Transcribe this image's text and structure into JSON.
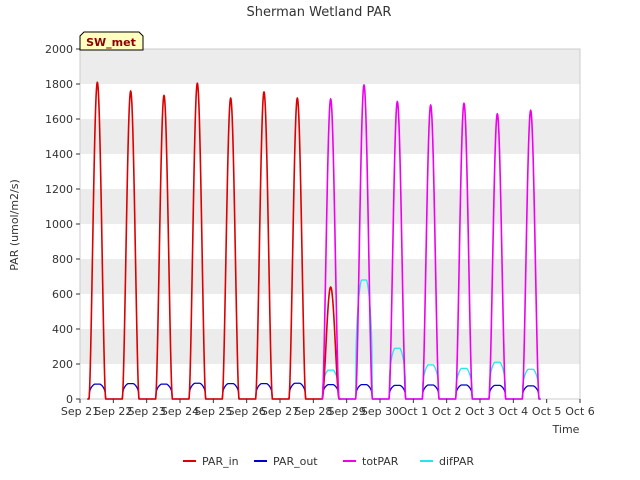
{
  "chart_data": {
    "type": "line",
    "title": "Sherman Wetland PAR",
    "xlabel": "Time",
    "ylabel": "PAR (umol/m2/s)",
    "badge": "SW_met",
    "x_tick_labels": [
      "Sep 21",
      "Sep 22",
      "Sep 23",
      "Sep 24",
      "Sep 25",
      "Sep 26",
      "Sep 27",
      "Sep 28",
      "Sep 29",
      "Sep 30",
      "Oct 1",
      "Oct 2",
      "Oct 3",
      "Oct 4",
      "Oct 5",
      "Oct 6"
    ],
    "xlim_days": [
      0,
      15
    ],
    "ylim": [
      0,
      2000
    ],
    "y_ticks": [
      0,
      200,
      400,
      600,
      800,
      1000,
      1200,
      1400,
      1600,
      1800,
      2000
    ],
    "grid": "horizontal bands",
    "legend_position": "bottom",
    "colors": {
      "PAR_in": "#dd0000",
      "PAR_out": "#0000cc",
      "totPAR": "#ee00ee",
      "difPAR": "#22e5f0",
      "band": "#ececec",
      "badge_fill": "#ffffc0"
    },
    "series": [
      {
        "name": "PAR_in",
        "daily_peaks": [
          {
            "day": "Sep 21",
            "peak": 1810
          },
          {
            "day": "Sep 22",
            "peak": 1760
          },
          {
            "day": "Sep 23",
            "peak": 1735
          },
          {
            "day": "Sep 24",
            "peak": 1805
          },
          {
            "day": "Sep 25",
            "peak": 1720
          },
          {
            "day": "Sep 26",
            "peak": 1755
          },
          {
            "day": "Sep 27",
            "peak": 1720
          },
          {
            "day": "Sep 28",
            "peak": 640
          }
        ]
      },
      {
        "name": "PAR_out",
        "daily_peaks": [
          {
            "day": "Sep 21",
            "peak": 85
          },
          {
            "day": "Sep 22",
            "peak": 88
          },
          {
            "day": "Sep 23",
            "peak": 85
          },
          {
            "day": "Sep 24",
            "peak": 90
          },
          {
            "day": "Sep 25",
            "peak": 88
          },
          {
            "day": "Sep 26",
            "peak": 88
          },
          {
            "day": "Sep 27",
            "peak": 90
          },
          {
            "day": "Sep 28",
            "peak": 82
          },
          {
            "day": "Sep 29",
            "peak": 82
          },
          {
            "day": "Sep 30",
            "peak": 78
          },
          {
            "day": "Oct 1",
            "peak": 80
          },
          {
            "day": "Oct 2",
            "peak": 80
          },
          {
            "day": "Oct 3",
            "peak": 78
          },
          {
            "day": "Oct 4",
            "peak": 75
          }
        ]
      },
      {
        "name": "totPAR",
        "daily_peaks": [
          {
            "day": "Sep 28",
            "peak": 1715
          },
          {
            "day": "Sep 29",
            "peak": 1795
          },
          {
            "day": "Sep 30",
            "peak": 1700
          },
          {
            "day": "Oct 1",
            "peak": 1680
          },
          {
            "day": "Oct 2",
            "peak": 1690
          },
          {
            "day": "Oct 3",
            "peak": 1630
          },
          {
            "day": "Oct 4",
            "peak": 1650
          }
        ]
      },
      {
        "name": "difPAR",
        "daily_peaks": [
          {
            "day": "Sep 28",
            "peak": 165
          },
          {
            "day": "Sep 29",
            "peak": 680
          },
          {
            "day": "Sep 30",
            "peak": 290
          },
          {
            "day": "Oct 1",
            "peak": 195
          },
          {
            "day": "Oct 2",
            "peak": 175
          },
          {
            "day": "Oct 3",
            "peak": 210
          },
          {
            "day": "Oct 4",
            "peak": 170
          }
        ]
      }
    ]
  }
}
